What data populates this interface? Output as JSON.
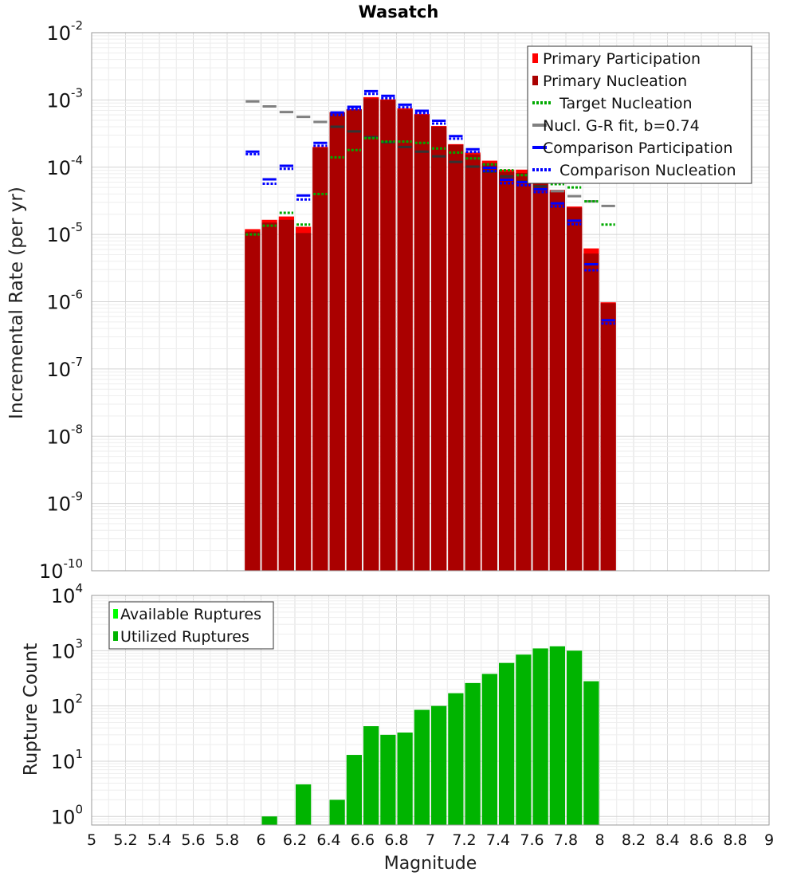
{
  "chart_data": [
    {
      "type": "bar",
      "title": "Wasatch",
      "xlabel": "",
      "ylabel": "Incremental Rate (per yr)",
      "xlim": [
        5,
        9
      ],
      "ylim": [
        1e-10,
        0.01
      ],
      "yscale": "log",
      "grid": true,
      "legend_position": "top-right",
      "bin_width": 0.1,
      "x": [
        5.95,
        6.05,
        6.15,
        6.25,
        6.35,
        6.45,
        6.55,
        6.65,
        6.75,
        6.85,
        6.95,
        7.05,
        7.15,
        7.25,
        7.35,
        7.45,
        7.55,
        7.65,
        7.75,
        7.85,
        7.95,
        8.05
      ],
      "legend": [
        "Primary Participation",
        "Primary Nucleation",
        "Target Nucleation",
        "Nucl. G-R fit, b=0.74",
        "Comparison Participation",
        "Comparison Nucleation"
      ],
      "series": [
        {
          "name": "Primary Participation",
          "color": "#ff0000",
          "style": "bar",
          "values": [
            1.2e-05,
            1.65e-05,
            1.85e-05,
            1.3e-05,
            0.0002,
            0.00066,
            0.00073,
            0.0011,
            0.00102,
            0.00075,
            0.00062,
            0.00041,
            0.00022,
            0.000165,
            0.000125,
            9.2e-05,
            9.2e-05,
            6.2e-05,
            4.6e-05,
            2.6e-05,
            6.2e-06,
            9.8e-07
          ]
        },
        {
          "name": "Primary Nucleation",
          "color": "#aa0000",
          "style": "bar",
          "values": [
            1.1e-05,
            1.5e-05,
            1.65e-05,
            1.05e-05,
            0.000195,
            0.00065,
            0.00072,
            0.00105,
            0.001,
            0.00072,
            0.0006,
            0.0004,
            0.000215,
            0.000155,
            0.000115,
            8.5e-05,
            8.2e-05,
            5.8e-05,
            4.3e-05,
            2.5e-05,
            5.2e-06,
            9.5e-07
          ]
        },
        {
          "name": "Target Nucleation",
          "color": "#00aa00",
          "style": "dotted-step",
          "values": [
            1e-05,
            1.35e-05,
            2.1e-05,
            1.4e-05,
            4e-05,
            0.00014,
            0.00018,
            0.00027,
            0.00024,
            0.00024,
            0.00023,
            0.00019,
            0.000165,
            0.000135,
            0.00011,
            9e-05,
            7.6e-05,
            6.2e-05,
            5.6e-05,
            5e-05,
            3.1e-05,
            1.4e-05
          ]
        },
        {
          "name": "Nucl. G-R fit, b=0.74",
          "color": "#808080",
          "style": "step",
          "values": [
            0.00095,
            0.0008,
            0.00066,
            0.00056,
            0.00047,
            0.0004,
            0.00034,
            0.00028,
            0.000235,
            0.0002,
            0.00017,
            0.000145,
            0.00012,
            0.000102,
            8.6e-05,
            7.3e-05,
            6.1e-05,
            5.2e-05,
            4.4e-05,
            3.7e-05,
            3.1e-05,
            2.65e-05
          ]
        },
        {
          "name": "Comparison Participation",
          "color": "#0000ff",
          "style": "step",
          "values": [
            0.00017,
            6.6e-05,
            0.000105,
            3.8e-05,
            0.00023,
            0.00065,
            0.00079,
            0.00135,
            0.00115,
            0.00085,
            0.00069,
            0.00049,
            0.00029,
            0.000185,
            9.8e-05,
            6.5e-05,
            6e-05,
            4.7e-05,
            2.9e-05,
            1.6e-05,
            3.6e-06,
            5.3e-07
          ]
        },
        {
          "name": "Comparison Nucleation",
          "color": "#0000ff",
          "style": "dotted-step",
          "values": [
            0.000165,
            6e-05,
            0.0001,
            3.5e-05,
            0.00022,
            0.00063,
            0.00077,
            0.0013,
            0.00112,
            0.00082,
            0.00067,
            0.00047,
            0.00028,
            0.000178,
            9.3e-05,
            6.1e-05,
            5.7e-05,
            4.5e-05,
            2.75e-05,
            1.5e-05,
            3.1e-06,
            5e-07
          ]
        }
      ]
    },
    {
      "type": "bar",
      "title": "",
      "xlabel": "Magnitude",
      "ylabel": "Rupture Count",
      "xlim": [
        5,
        9
      ],
      "ylim": [
        0.7,
        10000
      ],
      "yscale": "log",
      "grid": true,
      "legend_position": "top-left",
      "bin_width": 0.1,
      "xticks": [
        "5",
        "5.2",
        "5.4",
        "5.6",
        "5.8",
        "6",
        "6.2",
        "6.4",
        "6.6",
        "6.8",
        "7",
        "7.2",
        "7.4",
        "7.6",
        "7.8",
        "8",
        "8.2",
        "8.4",
        "8.6",
        "8.8",
        "9"
      ],
      "x": [
        6.05,
        6.25,
        6.45,
        6.55,
        6.65,
        6.75,
        6.85,
        6.95,
        7.05,
        7.15,
        7.25,
        7.35,
        7.45,
        7.55,
        7.65,
        7.75,
        7.85,
        7.95
      ],
      "legend": [
        "Available Ruptures",
        "Utilized Ruptures"
      ],
      "series": [
        {
          "name": "Available Ruptures",
          "color": "#00ff00",
          "values": [
            1,
            3.8,
            2,
            13,
            43,
            30,
            33,
            85,
            100,
            170,
            260,
            380,
            600,
            850,
            1100,
            1200,
            1000,
            280
          ]
        },
        {
          "name": "Utilized Ruptures",
          "color": "#00b400",
          "values": [
            1,
            3.8,
            2,
            13,
            43,
            30,
            33,
            85,
            100,
            170,
            260,
            380,
            600,
            850,
            1100,
            1200,
            1000,
            280
          ]
        }
      ]
    }
  ]
}
